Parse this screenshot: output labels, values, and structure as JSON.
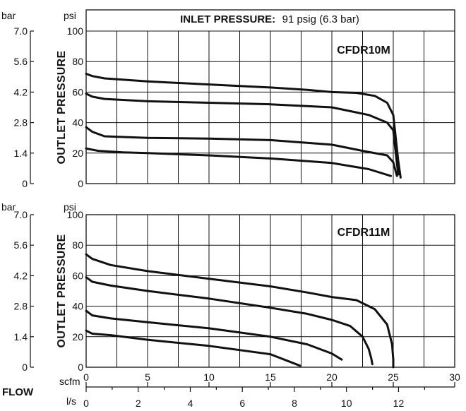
{
  "banner": {
    "label": "INLET PRESSURE:",
    "value": "91 psig (6.3 bar)"
  },
  "units": {
    "bar": "bar",
    "psi": "psi",
    "scfm": "scfm",
    "ls": "l/s"
  },
  "flow_title": "FLOW",
  "chart_data": [
    {
      "type": "line",
      "title": "CFDR10M",
      "ylabel": "OUTLET PRESSURE",
      "xlabel": "FLOW",
      "xlim": [
        0,
        30
      ],
      "ylim": [
        0,
        100
      ],
      "grid": true,
      "yticks_psi": [
        "0",
        "20",
        "40",
        "60",
        "80",
        "100"
      ],
      "yticks_bar": [
        "0",
        "1.4",
        "2.8",
        "4.2",
        "5.6",
        "7.0"
      ],
      "series": [
        {
          "x": [
            0,
            0.5,
            1.5,
            5,
            10,
            15,
            18,
            20,
            22,
            23.5,
            24.5,
            25,
            25.2,
            25.4,
            25.6
          ],
          "y": [
            72,
            70.5,
            69,
            67,
            65,
            63,
            61.5,
            60,
            59.5,
            57.5,
            53,
            45,
            30,
            15,
            4
          ]
        },
        {
          "x": [
            0,
            0.5,
            1.5,
            5,
            10,
            15,
            20,
            23,
            24.5,
            25,
            25.2,
            25.4
          ],
          "y": [
            59,
            57,
            55.5,
            54,
            53,
            52,
            50,
            45,
            40,
            35,
            20,
            6
          ]
        },
        {
          "x": [
            0,
            0.5,
            1.5,
            5,
            10,
            15,
            20,
            22.5,
            24.5,
            25,
            25.3
          ],
          "y": [
            37,
            34,
            31,
            30,
            29.5,
            28.5,
            25.5,
            21.5,
            18.5,
            14,
            5
          ]
        },
        {
          "x": [
            0,
            1,
            3,
            5,
            10,
            15,
            20,
            23,
            24.8
          ],
          "y": [
            23,
            21.5,
            20.5,
            20,
            18.5,
            16.5,
            13.5,
            9.5,
            5
          ]
        }
      ]
    },
    {
      "type": "line",
      "title": "CFDR11M",
      "ylabel": "OUTLET PRESSURE",
      "xlabel": "FLOW",
      "xlim": [
        0,
        30
      ],
      "ylim": [
        0,
        100
      ],
      "grid": true,
      "yticks_psi": [
        "0",
        "20",
        "40",
        "60",
        "80",
        "100"
      ],
      "yticks_bar": [
        "0",
        "1.4",
        "2.8",
        "4.2",
        "5.6",
        "7.0"
      ],
      "series": [
        {
          "x": [
            0,
            0.5,
            2,
            5,
            10,
            15,
            18,
            20,
            22,
            23.5,
            24.5,
            24.9,
            25,
            25
          ],
          "y": [
            74,
            71,
            67,
            63,
            58,
            53,
            49,
            46,
            44,
            38,
            28,
            15,
            5,
            0
          ]
        },
        {
          "x": [
            0,
            0.5,
            2,
            5,
            10,
            15,
            18,
            20,
            21.5,
            22.5,
            23,
            23.2,
            23.3
          ],
          "y": [
            59,
            56,
            53.5,
            50,
            45,
            39,
            35,
            31,
            27,
            20,
            12,
            6,
            2
          ]
        },
        {
          "x": [
            0,
            0.5,
            2,
            5,
            10,
            15,
            18,
            20,
            20.8
          ],
          "y": [
            37,
            34,
            32,
            29.5,
            25.5,
            20,
            15,
            9,
            5
          ]
        },
        {
          "x": [
            0,
            0.5,
            2,
            5,
            10,
            15,
            17.4
          ],
          "y": [
            24,
            22,
            21,
            18,
            14,
            8.5,
            1
          ]
        }
      ]
    }
  ],
  "flow_axis": {
    "scfm_ticks": [
      "0",
      "5",
      "10",
      "15",
      "20",
      "25",
      "30"
    ],
    "ls_ticks": [
      "0",
      "2",
      "4",
      "6",
      "8",
      "10",
      "12"
    ]
  }
}
